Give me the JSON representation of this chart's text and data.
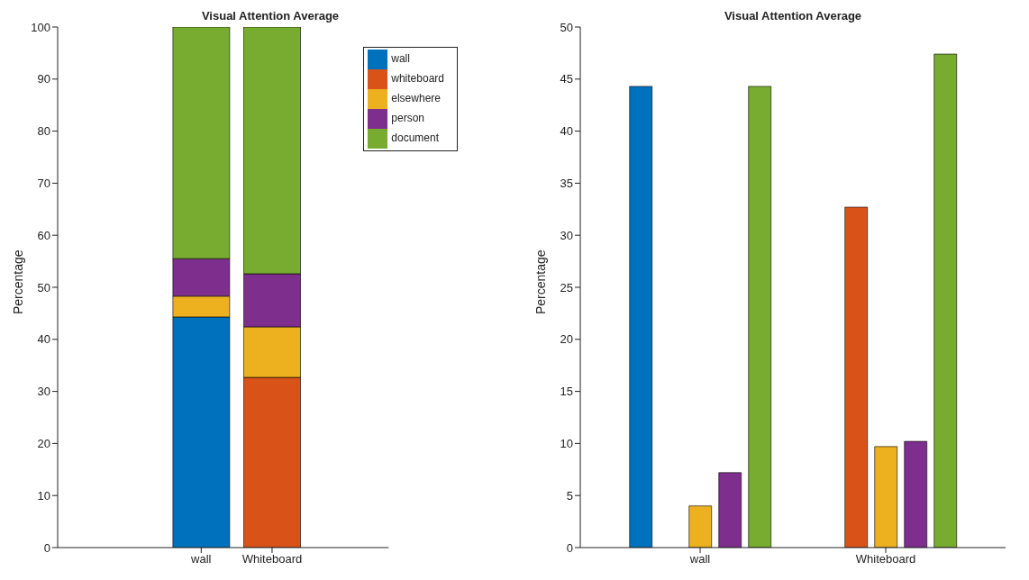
{
  "chart_data": [
    {
      "type": "bar",
      "title": "Visual Attention Average",
      "ylabel": "Percentage",
      "categories": [
        "wall",
        "Whiteboard"
      ],
      "stacked": true,
      "ylim": [
        0,
        100
      ],
      "yticks": [
        0,
        10,
        20,
        30,
        40,
        50,
        60,
        70,
        80,
        90,
        100
      ],
      "grid": false,
      "legend": "top right",
      "series": [
        {
          "name": "wall",
          "color": "#0072bd",
          "values": [
            44.3,
            0
          ]
        },
        {
          "name": "whiteboard",
          "color": "#d95319",
          "values": [
            0,
            32.7
          ]
        },
        {
          "name": "elsewhere",
          "color": "#edb120",
          "values": [
            4.0,
            9.7
          ]
        },
        {
          "name": "person",
          "color": "#7e2f8e",
          "values": [
            7.2,
            10.2
          ]
        },
        {
          "name": "document",
          "color": "#77ac30",
          "values": [
            44.5,
            47.4
          ]
        }
      ]
    },
    {
      "type": "bar",
      "title": "Visual Attention Average",
      "ylabel": "Percentage",
      "categories": [
        "wall",
        "Whiteboard"
      ],
      "ylim": [
        0,
        50
      ],
      "yticks": [
        0,
        5,
        10,
        15,
        20,
        25,
        30,
        35,
        40,
        45,
        50
      ],
      "grid": false,
      "series": [
        {
          "color": "#0072bd",
          "values": [
            44.3,
            0
          ]
        },
        {
          "color": "#d95319",
          "values": [
            0,
            32.7
          ]
        },
        {
          "color": "#edb120",
          "values": [
            4.0,
            9.7
          ]
        },
        {
          "color": "#7e2f8e",
          "values": [
            7.2,
            10.2
          ]
        },
        {
          "color": "#77ac30",
          "values": [
            44.3,
            47.4
          ]
        }
      ]
    }
  ]
}
